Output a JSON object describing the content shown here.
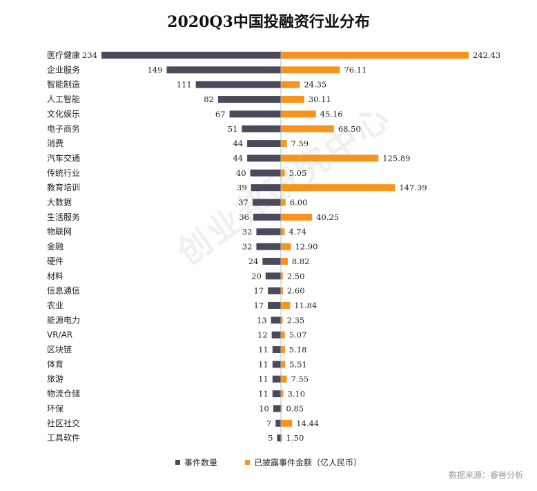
{
  "chart_data": {
    "type": "bar",
    "title": "2020Q3中国投融资行业分布",
    "categories": [
      "医疗健康",
      "企业服务",
      "智能制造",
      "人工智能",
      "文化娱乐",
      "电子商务",
      "消费",
      "汽车交通",
      "传统行业",
      "教育培训",
      "大数据",
      "生活服务",
      "物联网",
      "金融",
      "硬件",
      "材料",
      "信息通信",
      "农业",
      "能源电力",
      "VR/AR",
      "区块链",
      "体育",
      "旅游",
      "物流仓储",
      "环保",
      "社区社交",
      "工具软件"
    ],
    "series": [
      {
        "name": "事件数量",
        "color": "#4a4a5a",
        "values": [
          234,
          149,
          111,
          82,
          67,
          51,
          44,
          44,
          40,
          39,
          37,
          36,
          32,
          32,
          24,
          20,
          17,
          17,
          13,
          12,
          11,
          11,
          11,
          11,
          10,
          7,
          5
        ]
      },
      {
        "name": "已披露事件金额（亿人民币）",
        "color": "#f7941d",
        "values": [
          "242.43",
          "76.11",
          "24.35",
          "30.11",
          "45.16",
          "68.50",
          "7.59",
          "125.89",
          "5.05",
          "147.39",
          "6.00",
          "40.25",
          "4.74",
          "12.90",
          "8.82",
          "2.50",
          "2.60",
          "11.84",
          "2.35",
          "5.07",
          "5.18",
          "5.51",
          "7.55",
          "3.10",
          "0.85",
          "14.44",
          "1.50"
        ]
      }
    ],
    "legend_position": "bottom-center",
    "grid": false
  },
  "watermark": "创业邦研究中心",
  "source": "数据来源：睿兽分析"
}
